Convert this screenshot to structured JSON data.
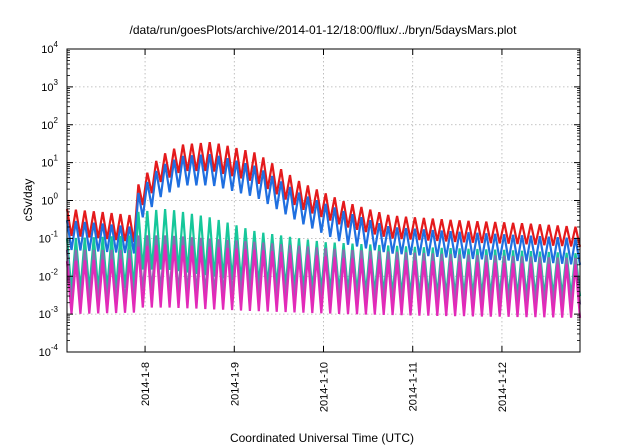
{
  "chart_data": {
    "type": "line",
    "title": "/data/run/goesPlots/archive/2014-01-12/18:00/flux/../bryn/5daysMars.plot",
    "xlabel": "Coordinated Universal Time (UTC)",
    "ylabel": "cSv/day",
    "y_scale": "log",
    "ylim": [
      0.0001,
      10000
    ],
    "xlim": [
      "2014-01-07 03:00",
      "2014-01-12 21:00"
    ],
    "x_ticks": [
      "2014-1-8",
      "2014-1-9",
      "2014-1-10",
      "2014-1-11",
      "2014-1-12"
    ],
    "y_ticks": [
      {
        "base": "10",
        "exp": "-4"
      },
      {
        "base": "10",
        "exp": "-3"
      },
      {
        "base": "10",
        "exp": "-2"
      },
      {
        "base": "10",
        "exp": "-1"
      },
      {
        "base": "10",
        "exp": "0"
      },
      {
        "base": "10",
        "exp": "1"
      },
      {
        "base": "10",
        "exp": "2"
      },
      {
        "base": "10",
        "exp": "3"
      },
      {
        "base": "10",
        "exp": "4"
      }
    ],
    "grid": true,
    "legend": "none",
    "oscillation_period_hours": 2.4,
    "series": [
      {
        "color": "#e41a1c",
        "x": [
          "2014-01-07 03:00",
          "2014-01-07 12:00",
          "2014-01-07 21:00",
          "2014-01-07 22:00",
          "2014-01-08 04:00",
          "2014-01-08 10:00",
          "2014-01-08 18:00",
          "2014-01-09 06:00",
          "2014-01-09 18:00",
          "2014-01-10 06:00",
          "2014-01-10 18:00",
          "2014-01-11 12:00",
          "2014-01-12 06:00",
          "2014-01-12 21:00"
        ],
        "peak": [
          0.6,
          0.5,
          0.4,
          2.5,
          15,
          30,
          35,
          18,
          3,
          0.9,
          0.4,
          0.3,
          0.25,
          0.2
        ],
        "trough": [
          0.12,
          0.1,
          0.08,
          0.5,
          3,
          6,
          6,
          3,
          0.6,
          0.2,
          0.1,
          0.08,
          0.07,
          0.06
        ]
      },
      {
        "color": "#1f6fe0",
        "x": [
          "2014-01-07 03:00",
          "2014-01-07 12:00",
          "2014-01-07 21:00",
          "2014-01-07 22:00",
          "2014-01-08 04:00",
          "2014-01-08 10:00",
          "2014-01-08 18:00",
          "2014-01-09 06:00",
          "2014-01-09 18:00",
          "2014-01-10 06:00",
          "2014-01-10 18:00",
          "2014-01-11 12:00",
          "2014-01-12 06:00",
          "2014-01-12 21:00"
        ],
        "peak": [
          0.3,
          0.25,
          0.2,
          1.5,
          8,
          15,
          17,
          8,
          1.5,
          0.5,
          0.2,
          0.15,
          0.12,
          0.1
        ],
        "trough": [
          0.05,
          0.045,
          0.04,
          0.25,
          1.2,
          2.5,
          2.5,
          1.2,
          0.25,
          0.07,
          0.04,
          0.03,
          0.025,
          0.02
        ]
      },
      {
        "color": "#16c79a",
        "x": [
          "2014-01-07 03:00",
          "2014-01-07 21:00",
          "2014-01-07 22:00",
          "2014-01-08 06:00",
          "2014-01-08 18:00",
          "2014-01-09 06:00",
          "2014-01-10 00:00",
          "2014-01-11 00:00",
          "2014-01-12 00:00",
          "2014-01-12 21:00"
        ],
        "peak": [
          0.1,
          0.12,
          0.5,
          0.6,
          0.35,
          0.15,
          0.08,
          0.06,
          0.05,
          0.04
        ],
        "trough": [
          0.004,
          0.005,
          0.015,
          0.015,
          0.01,
          0.006,
          0.004,
          0.003,
          0.003,
          0.003
        ]
      },
      {
        "color": "#8c6bb1",
        "x": [
          "2014-01-07 03:00",
          "2014-01-07 21:00",
          "2014-01-07 22:00",
          "2014-01-08 06:00",
          "2014-01-09 06:00",
          "2014-01-10 06:00",
          "2014-01-11 06:00",
          "2014-01-12 21:00"
        ],
        "peak": [
          0.05,
          0.05,
          0.12,
          0.12,
          0.08,
          0.05,
          0.04,
          0.03
        ],
        "trough": [
          0.002,
          0.002,
          0.004,
          0.004,
          0.003,
          0.002,
          0.002,
          0.0018
        ]
      },
      {
        "color": "#e22ab8",
        "x": [
          "2014-01-07 03:00",
          "2014-01-07 21:00",
          "2014-01-07 22:00",
          "2014-01-08 06:00",
          "2014-01-09 06:00",
          "2014-01-10 06:00",
          "2014-01-11 06:00",
          "2014-01-12 21:00"
        ],
        "peak": [
          0.025,
          0.03,
          0.06,
          0.07,
          0.05,
          0.03,
          0.025,
          0.02
        ],
        "trough": [
          0.001,
          0.0011,
          0.0015,
          0.0015,
          0.0012,
          0.001,
          0.0009,
          0.0008
        ]
      }
    ]
  }
}
